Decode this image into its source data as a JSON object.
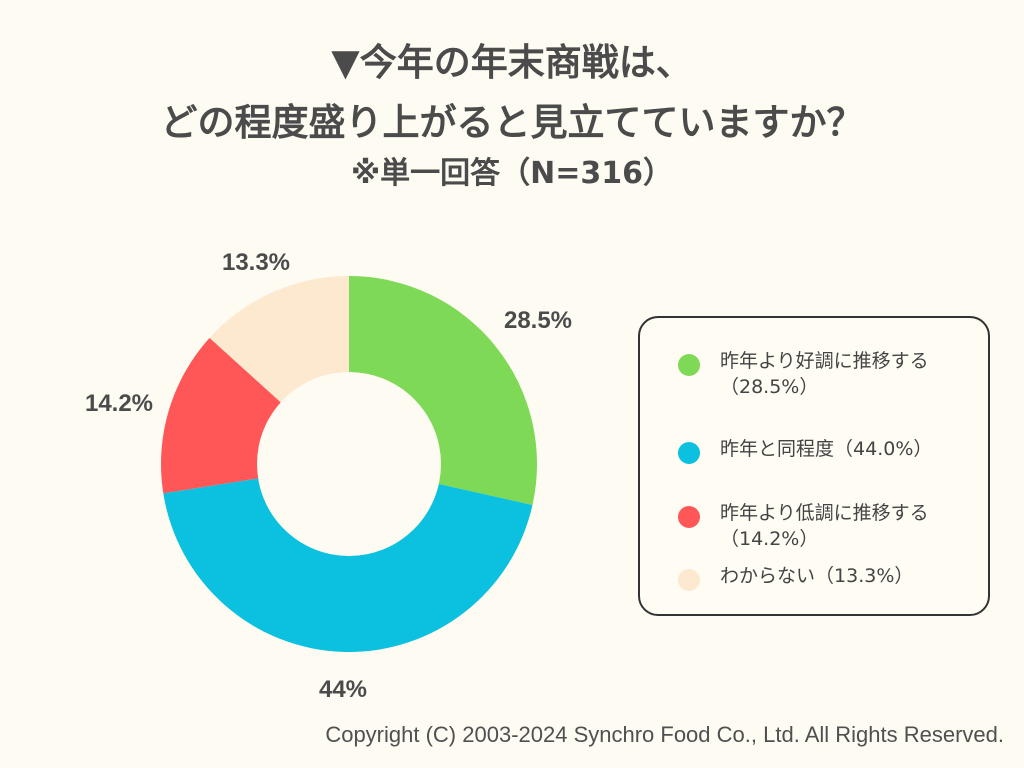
{
  "title": {
    "line1": "▼今年の年末商戦は、",
    "line2": "どの程度盛り上がると見立てていますか？",
    "line3": "※単一回答（N=316）"
  },
  "chart_data": {
    "type": "pie",
    "donut": true,
    "slices": [
      {
        "label": "昨年より好調に推移する",
        "value": 28.5,
        "display": "28.5%",
        "legend_value": "（28.5%）",
        "color": "#7ed957"
      },
      {
        "label": "昨年と同程度",
        "value": 44.0,
        "display": "44%",
        "legend_value": "（44.0%）",
        "color": "#0cc0df"
      },
      {
        "label": "昨年より低調に推移する",
        "value": 14.2,
        "display": "14.2%",
        "legend_value": "（14.2%）",
        "color": "#ff5757"
      },
      {
        "label": "わからない",
        "value": 13.3,
        "display": "13.3%",
        "legend_value": "（13.3%）",
        "color": "#fde8d0"
      }
    ],
    "legend_placement": "right"
  },
  "colors": {
    "background": "#fdfbf2",
    "text": "#4b4b4b"
  },
  "copyright": "Copyright (C) 2003-2024  Synchro Food Co., Ltd. All Rights Reserved."
}
